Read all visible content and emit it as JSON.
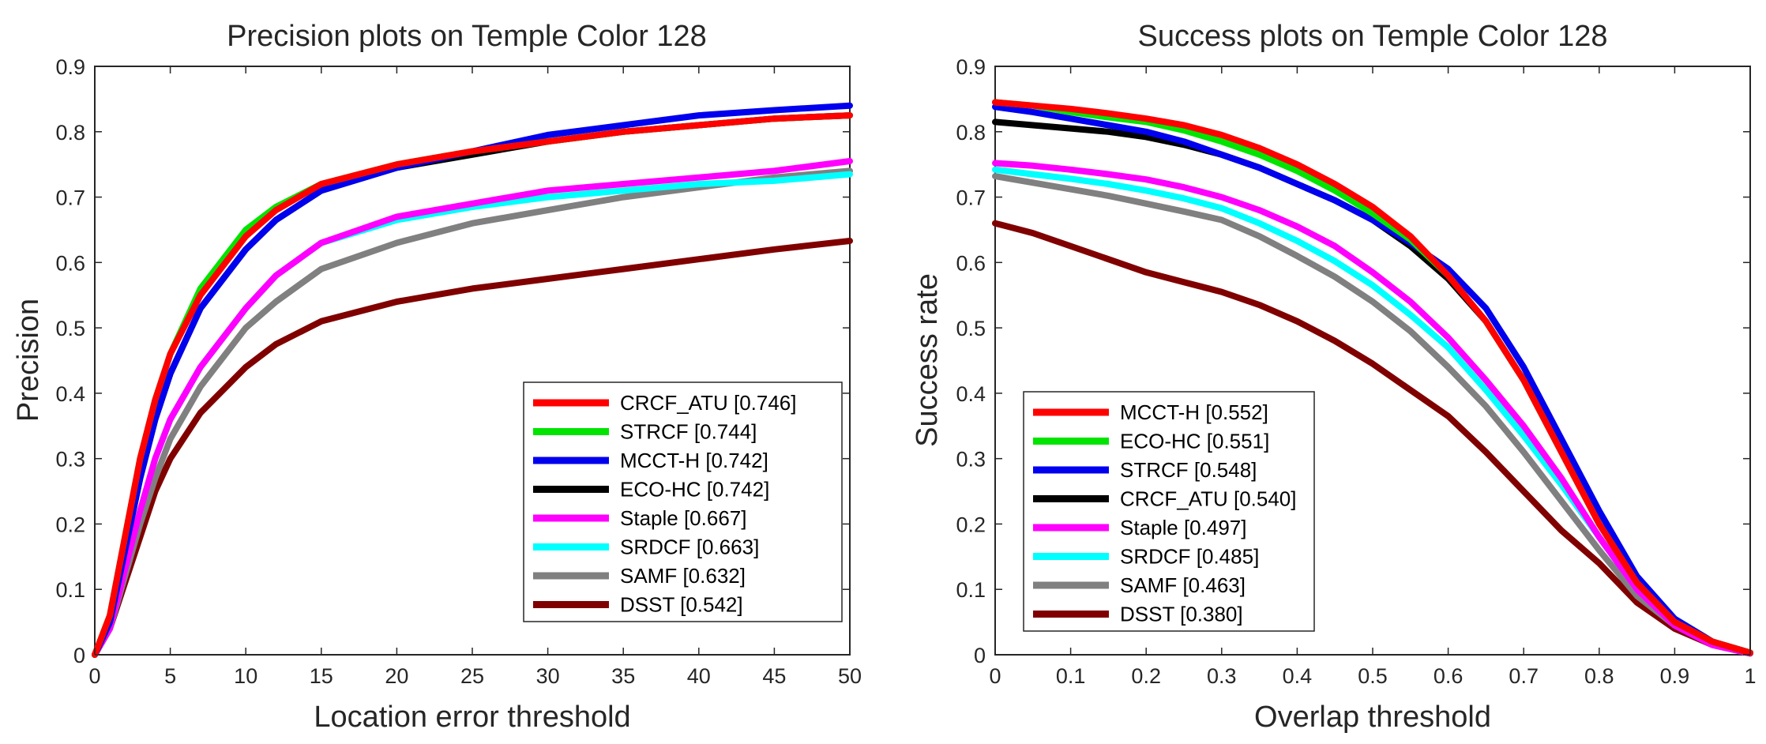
{
  "chart_data": [
    {
      "type": "line",
      "title": "Precision plots on Temple Color 128",
      "xlabel": "Location error threshold",
      "ylabel": "Precision",
      "xlim": [
        0,
        50
      ],
      "ylim": [
        0,
        0.9
      ],
      "xticks": [
        "0",
        "5",
        "10",
        "15",
        "20",
        "25",
        "30",
        "35",
        "40",
        "45",
        "50"
      ],
      "yticks": [
        "0",
        "0.1",
        "0.2",
        "0.3",
        "0.4",
        "0.5",
        "0.6",
        "0.7",
        "0.8",
        "0.9"
      ],
      "grid": false,
      "legend_position": "bottom-right",
      "x": [
        0,
        1,
        2,
        3,
        4,
        5,
        7,
        10,
        12,
        15,
        20,
        25,
        30,
        35,
        40,
        45,
        50
      ],
      "series": [
        {
          "name": "CRCF_ATU",
          "score": "0.746",
          "label": "CRCF_ATU [0.746]",
          "color": "#ff0000",
          "values": [
            0.0,
            0.06,
            0.18,
            0.3,
            0.39,
            0.46,
            0.55,
            0.64,
            0.68,
            0.72,
            0.75,
            0.77,
            0.785,
            0.8,
            0.81,
            0.82,
            0.825
          ]
        },
        {
          "name": "STRCF",
          "score": "0.744",
          "label": "STRCF [0.744]",
          "color": "#00e400",
          "values": [
            0.0,
            0.06,
            0.18,
            0.3,
            0.39,
            0.46,
            0.56,
            0.65,
            0.685,
            0.72,
            0.75,
            0.77,
            0.785,
            0.8,
            0.81,
            0.82,
            0.825
          ]
        },
        {
          "name": "MCCT-H",
          "score": "0.742",
          "label": "MCCT-H [0.742]",
          "color": "#0000ee",
          "values": [
            0.0,
            0.05,
            0.16,
            0.27,
            0.36,
            0.43,
            0.53,
            0.62,
            0.665,
            0.71,
            0.745,
            0.77,
            0.795,
            0.81,
            0.825,
            0.833,
            0.84
          ]
        },
        {
          "name": "ECO-HC",
          "score": "0.742",
          "label": "ECO-HC [0.742]",
          "color": "#000000",
          "values": [
            0.0,
            0.05,
            0.16,
            0.27,
            0.36,
            0.43,
            0.53,
            0.62,
            0.665,
            0.71,
            0.745,
            0.765,
            0.785,
            0.8,
            0.81,
            0.82,
            0.825
          ]
        },
        {
          "name": "Staple",
          "score": "0.667",
          "label": "Staple [0.667]",
          "color": "#ff00ff",
          "values": [
            0.0,
            0.04,
            0.13,
            0.22,
            0.3,
            0.36,
            0.44,
            0.53,
            0.58,
            0.63,
            0.67,
            0.69,
            0.71,
            0.72,
            0.73,
            0.74,
            0.755
          ]
        },
        {
          "name": "SRDCF",
          "score": "0.663",
          "label": "SRDCF [0.663]",
          "color": "#00ffff",
          "values": [
            0.0,
            0.04,
            0.13,
            0.22,
            0.3,
            0.36,
            0.44,
            0.53,
            0.58,
            0.63,
            0.665,
            0.685,
            0.7,
            0.71,
            0.72,
            0.725,
            0.735
          ]
        },
        {
          "name": "SAMF",
          "score": "0.632",
          "label": "SAMF [0.632]",
          "color": "#808080",
          "values": [
            0.0,
            0.04,
            0.12,
            0.2,
            0.27,
            0.33,
            0.41,
            0.5,
            0.54,
            0.59,
            0.63,
            0.66,
            0.68,
            0.7,
            0.715,
            0.73,
            0.74
          ]
        },
        {
          "name": "DSST",
          "score": "0.542",
          "label": "DSST [0.542]",
          "color": "#800000",
          "values": [
            0.0,
            0.04,
            0.11,
            0.18,
            0.25,
            0.3,
            0.37,
            0.44,
            0.475,
            0.51,
            0.54,
            0.56,
            0.575,
            0.59,
            0.605,
            0.62,
            0.633
          ]
        }
      ]
    },
    {
      "type": "line",
      "title": "Success plots on Temple Color 128",
      "xlabel": "Overlap threshold",
      "ylabel": "Success rate",
      "xlim": [
        0,
        1
      ],
      "ylim": [
        0,
        0.9
      ],
      "xticks": [
        "0",
        "0.1",
        "0.2",
        "0.3",
        "0.4",
        "0.5",
        "0.6",
        "0.7",
        "0.8",
        "0.9",
        "1"
      ],
      "yticks": [
        "0",
        "0.1",
        "0.2",
        "0.3",
        "0.4",
        "0.5",
        "0.6",
        "0.7",
        "0.8",
        "0.9"
      ],
      "grid": false,
      "legend_position": "bottom-left",
      "x": [
        0,
        0.05,
        0.1,
        0.15,
        0.2,
        0.25,
        0.3,
        0.35,
        0.4,
        0.45,
        0.5,
        0.55,
        0.6,
        0.65,
        0.7,
        0.75,
        0.8,
        0.85,
        0.9,
        0.95,
        1.0
      ],
      "series": [
        {
          "name": "MCCT-H",
          "score": "0.552",
          "label": "MCCT-H [0.552]",
          "color": "#ff0000",
          "values": [
            0.845,
            0.84,
            0.835,
            0.828,
            0.82,
            0.81,
            0.795,
            0.775,
            0.75,
            0.72,
            0.685,
            0.64,
            0.58,
            0.51,
            0.42,
            0.31,
            0.2,
            0.11,
            0.05,
            0.02,
            0.003
          ]
        },
        {
          "name": "ECO-HC",
          "score": "0.551",
          "label": "ECO-HC [0.551]",
          "color": "#00e400",
          "values": [
            0.845,
            0.84,
            0.83,
            0.822,
            0.815,
            0.802,
            0.785,
            0.765,
            0.74,
            0.71,
            0.675,
            0.635,
            0.58,
            0.51,
            0.42,
            0.31,
            0.2,
            0.11,
            0.05,
            0.02,
            0.003
          ]
        },
        {
          "name": "STRCF",
          "score": "0.548",
          "label": "STRCF [0.548]",
          "color": "#0000ee",
          "values": [
            0.838,
            0.83,
            0.82,
            0.81,
            0.8,
            0.785,
            0.765,
            0.745,
            0.72,
            0.695,
            0.665,
            0.63,
            0.59,
            0.53,
            0.44,
            0.33,
            0.22,
            0.12,
            0.055,
            0.02,
            0.003
          ]
        },
        {
          "name": "CRCF_ATU",
          "score": "0.540",
          "label": "CRCF_ATU [0.540]",
          "color": "#000000",
          "values": [
            0.815,
            0.81,
            0.805,
            0.8,
            0.792,
            0.78,
            0.765,
            0.745,
            0.72,
            0.695,
            0.665,
            0.625,
            0.575,
            0.51,
            0.42,
            0.31,
            0.2,
            0.11,
            0.05,
            0.02,
            0.003
          ]
        },
        {
          "name": "Staple",
          "score": "0.497",
          "label": "Staple [0.497]",
          "color": "#ff00ff",
          "values": [
            0.752,
            0.748,
            0.742,
            0.735,
            0.727,
            0.715,
            0.7,
            0.68,
            0.655,
            0.625,
            0.585,
            0.54,
            0.485,
            0.42,
            0.35,
            0.27,
            0.18,
            0.1,
            0.045,
            0.015,
            0.002
          ]
        },
        {
          "name": "SRDCF",
          "score": "0.485",
          "label": "SRDCF [0.485]",
          "color": "#00ffff",
          "values": [
            0.742,
            0.735,
            0.728,
            0.72,
            0.71,
            0.698,
            0.683,
            0.66,
            0.633,
            0.602,
            0.565,
            0.52,
            0.47,
            0.405,
            0.335,
            0.26,
            0.18,
            0.1,
            0.055,
            0.02,
            0.003
          ]
        },
        {
          "name": "SAMF",
          "score": "0.463",
          "label": "SAMF [0.463]",
          "color": "#808080",
          "values": [
            0.732,
            0.722,
            0.712,
            0.702,
            0.69,
            0.678,
            0.665,
            0.64,
            0.61,
            0.578,
            0.54,
            0.495,
            0.44,
            0.38,
            0.31,
            0.235,
            0.16,
            0.09,
            0.045,
            0.015,
            0.002
          ]
        },
        {
          "name": "DSST",
          "score": "0.380",
          "label": "DSST [0.380]",
          "color": "#800000",
          "values": [
            0.66,
            0.645,
            0.625,
            0.605,
            0.585,
            0.57,
            0.555,
            0.535,
            0.51,
            0.48,
            0.445,
            0.405,
            0.365,
            0.31,
            0.25,
            0.19,
            0.14,
            0.08,
            0.04,
            0.015,
            0.002
          ]
        }
      ]
    }
  ]
}
